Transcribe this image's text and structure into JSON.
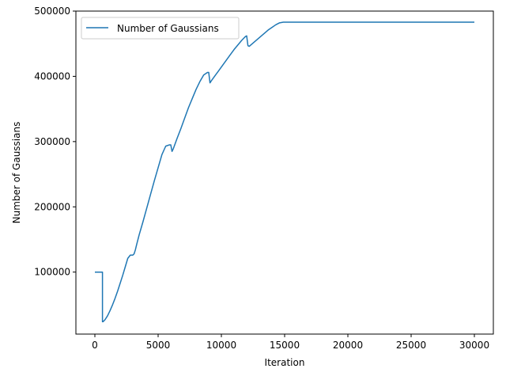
{
  "chart_data": {
    "type": "line",
    "xlabel": "Iteration",
    "ylabel": "Number of Gaussians",
    "xlim": [
      -1500,
      31500
    ],
    "ylim": [
      5000,
      500000
    ],
    "xticks": [
      0,
      5000,
      10000,
      15000,
      20000,
      25000,
      30000
    ],
    "xtick_labels": [
      "0",
      "5000",
      "10000",
      "15000",
      "20000",
      "25000",
      "30000"
    ],
    "yticks": [
      100000,
      200000,
      300000,
      400000,
      500000
    ],
    "ytick_labels": [
      "100000",
      "200000",
      "300000",
      "400000",
      "500000"
    ],
    "grid": false,
    "legend": {
      "position": "top-left",
      "entries": [
        "Number of Gaussians"
      ]
    },
    "series": [
      {
        "name": "Number of Gaussians",
        "color": "#1f77b4",
        "x": [
          0,
          600,
          600,
          650,
          800,
          1000,
          1200,
          1400,
          1600,
          1800,
          2000,
          2200,
          2400,
          2600,
          2800,
          3000,
          3100,
          3200,
          3300,
          3500,
          3800,
          4100,
          4400,
          4700,
          5000,
          5300,
          5600,
          5900,
          6000,
          6100,
          6200,
          6500,
          6800,
          7100,
          7400,
          7700,
          8000,
          8300,
          8600,
          8900,
          9000,
          9100,
          9200,
          9500,
          9800,
          10100,
          10400,
          10700,
          11000,
          11300,
          11600,
          11900,
          12000,
          12100,
          12200,
          12500,
          12800,
          13100,
          13400,
          13700,
          14000,
          14300,
          14600,
          14900,
          15000,
          20000,
          25000,
          30000
        ],
        "values": [
          100000,
          100000,
          24000,
          24000,
          27000,
          33000,
          41000,
          50000,
          60000,
          71000,
          83000,
          95000,
          108000,
          121000,
          126000,
          126000,
          128000,
          134000,
          142000,
          157000,
          177000,
          198000,
          219000,
          240000,
          260000,
          280000,
          293000,
          295000,
          295000,
          285000,
          289000,
          305000,
          320000,
          336000,
          352000,
          366000,
          380000,
          392000,
          402000,
          406000,
          406000,
          390000,
          393000,
          401000,
          409000,
          417000,
          425000,
          433000,
          441000,
          448000,
          455000,
          461000,
          462000,
          447000,
          446000,
          451000,
          456000,
          461000,
          466000,
          471000,
          475000,
          479000,
          482000,
          483000,
          483000,
          483000,
          483000,
          483000
        ]
      }
    ]
  }
}
